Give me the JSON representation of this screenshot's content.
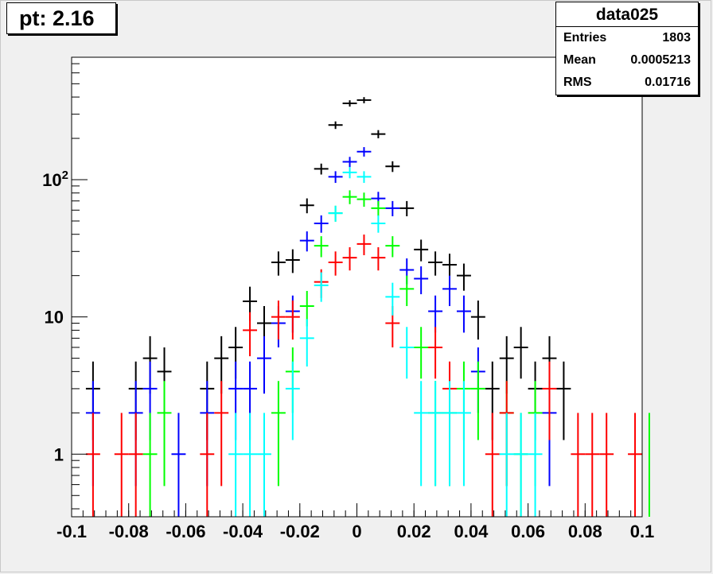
{
  "title_box": {
    "text": "pt: 2.16"
  },
  "stats": {
    "name": "data025",
    "rows": [
      {
        "label": "Entries",
        "value": "1803"
      },
      {
        "label": "Mean",
        "value": "0.0005213"
      },
      {
        "label": "RMS",
        "value": "0.01716"
      }
    ]
  },
  "chart_data": {
    "type": "scatter",
    "title": "",
    "xlabel": "",
    "ylabel": "",
    "xlim": [
      -0.1,
      0.1
    ],
    "ylim": [
      0.35,
      780
    ],
    "yscale": "log",
    "grid": false,
    "x_ticks": [
      "-0.1",
      "-0.08",
      "-0.06",
      "-0.04",
      "-0.02",
      "0",
      "0.02",
      "0.04",
      "0.06",
      "0.08",
      "0.1"
    ],
    "y_ticks": [
      {
        "value": 1,
        "label": "1"
      },
      {
        "value": 10,
        "label": "10"
      },
      {
        "value": 100,
        "label": "10",
        "sup": "2"
      }
    ],
    "bin_width": 0.005,
    "series": [
      {
        "color": "#000000",
        "points": [
          [
            -0.0925,
            3
          ],
          [
            -0.0775,
            3
          ],
          [
            -0.0725,
            5
          ],
          [
            -0.0675,
            4
          ],
          [
            -0.0525,
            3
          ],
          [
            -0.0475,
            5
          ],
          [
            -0.0425,
            6
          ],
          [
            -0.0375,
            13
          ],
          [
            -0.0325,
            9
          ],
          [
            -0.0275,
            25
          ],
          [
            -0.0225,
            26
          ],
          [
            -0.0175,
            65
          ],
          [
            -0.0125,
            120
          ],
          [
            -0.0075,
            250
          ],
          [
            -0.0025,
            360
          ],
          [
            0.0025,
            380
          ],
          [
            0.0075,
            215
          ],
          [
            0.0125,
            125
          ],
          [
            0.0175,
            62
          ],
          [
            0.0225,
            31
          ],
          [
            0.0275,
            25
          ],
          [
            0.0325,
            24
          ],
          [
            0.0375,
            20
          ],
          [
            0.0425,
            10
          ],
          [
            0.0475,
            3
          ],
          [
            0.0525,
            5
          ],
          [
            0.0575,
            6
          ],
          [
            0.0625,
            3
          ],
          [
            0.0675,
            5
          ],
          [
            0.0725,
            3
          ]
        ]
      },
      {
        "color": "#0000ff",
        "points": [
          [
            -0.0925,
            2
          ],
          [
            -0.0775,
            2
          ],
          [
            -0.0725,
            3
          ],
          [
            -0.0625,
            1
          ],
          [
            -0.0525,
            2
          ],
          [
            -0.0425,
            3
          ],
          [
            -0.0375,
            3
          ],
          [
            -0.0325,
            5
          ],
          [
            -0.0275,
            9
          ],
          [
            -0.0225,
            11
          ],
          [
            -0.0175,
            36
          ],
          [
            -0.0125,
            48
          ],
          [
            -0.0075,
            105
          ],
          [
            -0.0025,
            135
          ],
          [
            0.0025,
            160
          ],
          [
            0.0075,
            73
          ],
          [
            0.0125,
            62
          ],
          [
            0.0175,
            22
          ],
          [
            0.0225,
            19
          ],
          [
            0.0275,
            11
          ],
          [
            0.0325,
            16
          ],
          [
            0.0375,
            11
          ],
          [
            0.0425,
            4
          ],
          [
            0.0675,
            2
          ]
        ]
      },
      {
        "color": "#00ff00",
        "points": [
          [
            -0.0725,
            1
          ],
          [
            -0.0675,
            2
          ],
          [
            -0.0275,
            2
          ],
          [
            -0.0225,
            4
          ],
          [
            -0.0175,
            12
          ],
          [
            -0.0125,
            33
          ],
          [
            -0.0075,
            57
          ],
          [
            -0.0025,
            75
          ],
          [
            0.0025,
            72
          ],
          [
            0.0075,
            62
          ],
          [
            0.0125,
            33
          ],
          [
            0.0175,
            16
          ],
          [
            0.0225,
            6
          ],
          [
            0.0275,
            2
          ],
          [
            0.0325,
            2
          ],
          [
            0.0375,
            3
          ],
          [
            0.0425,
            3
          ],
          [
            0.0525,
            2
          ],
          [
            0.0575,
            1
          ],
          [
            0.0625,
            2
          ],
          [
            0.1025,
            1
          ]
        ]
      },
      {
        "color": "#ff0000",
        "points": [
          [
            -0.0925,
            1
          ],
          [
            -0.0825,
            1
          ],
          [
            -0.0775,
            1
          ],
          [
            -0.0525,
            1
          ],
          [
            -0.0475,
            2
          ],
          [
            -0.0375,
            8
          ],
          [
            -0.0275,
            10
          ],
          [
            -0.0225,
            10
          ],
          [
            -0.0125,
            18
          ],
          [
            -0.0075,
            25
          ],
          [
            -0.0025,
            27
          ],
          [
            0.0025,
            34
          ],
          [
            0.0075,
            27
          ],
          [
            0.0125,
            9
          ],
          [
            0.0275,
            6
          ],
          [
            0.0325,
            3
          ],
          [
            0.0475,
            1
          ],
          [
            0.0525,
            2
          ],
          [
            0.0675,
            3
          ],
          [
            0.0775,
            1
          ],
          [
            0.0825,
            1
          ],
          [
            0.0875,
            1
          ],
          [
            0.0975,
            1
          ]
        ]
      },
      {
        "color": "#00ffff",
        "points": [
          [
            -0.0425,
            1
          ],
          [
            -0.0375,
            1
          ],
          [
            -0.0325,
            1
          ],
          [
            -0.0225,
            3
          ],
          [
            -0.0175,
            7
          ],
          [
            -0.0125,
            17
          ],
          [
            -0.0075,
            57
          ],
          [
            -0.0025,
            113
          ],
          [
            0.0025,
            105
          ],
          [
            0.0075,
            48
          ],
          [
            0.0125,
            14
          ],
          [
            0.0175,
            6
          ],
          [
            0.0225,
            2
          ],
          [
            0.0275,
            2
          ],
          [
            0.0325,
            2
          ],
          [
            0.0375,
            2
          ],
          [
            0.0525,
            1
          ],
          [
            0.0575,
            1
          ],
          [
            0.0625,
            1
          ]
        ]
      }
    ]
  }
}
